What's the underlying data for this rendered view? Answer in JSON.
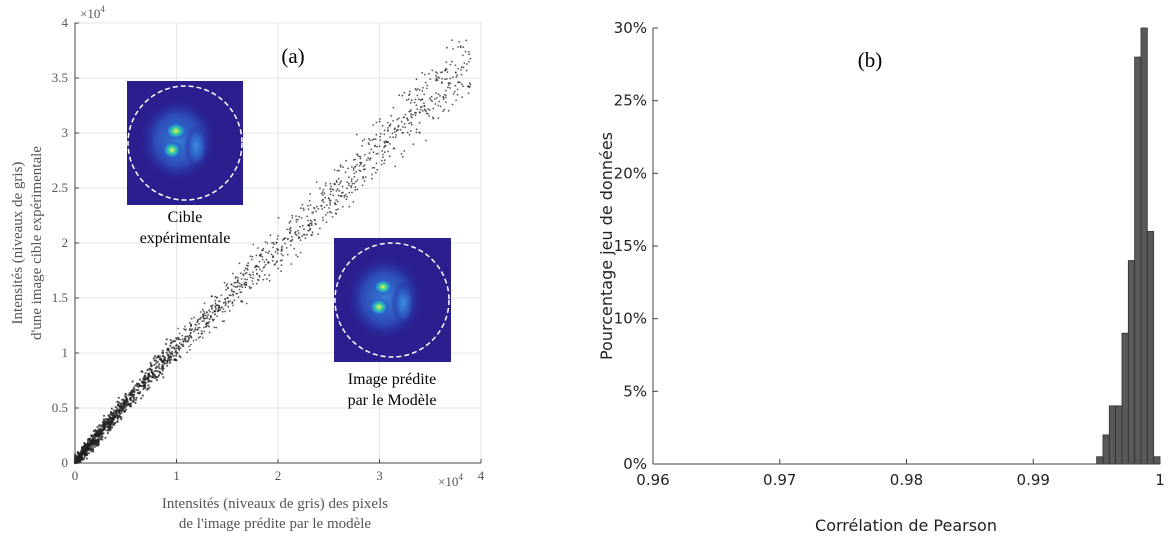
{
  "chart_data": [
    {
      "type": "scatter",
      "panel_label": "(a)",
      "xlabel_lines": [
        "Intensités (niveaux de gris) des pixels",
        "de l'image prédite par le modèle"
      ],
      "ylabel_lines": [
        "Intensités (niveaux de gris)",
        "d'une image cible expérimentale"
      ],
      "x_multiplier": "×10",
      "x_multiplier_exp": "4",
      "y_multiplier": "×10",
      "y_multiplier_exp": "4",
      "xlim": [
        0,
        4
      ],
      "ylim": [
        0,
        4
      ],
      "x_ticks": [
        0,
        1,
        2,
        3,
        4
      ],
      "x_tick_labels": [
        "0",
        "1",
        "2",
        "3",
        "4"
      ],
      "y_ticks": [
        0,
        0.5,
        1,
        1.5,
        2,
        2.5,
        3,
        3.5,
        4
      ],
      "y_tick_labels": [
        "0",
        "0.5",
        "1",
        "1.5",
        "2",
        "2.5",
        "3",
        "3.5",
        "4"
      ],
      "grid": true,
      "marker_color": "#222222",
      "trend": {
        "x": [
          0,
          0.5,
          1.0,
          1.5,
          2.0,
          2.5,
          3.0,
          3.5,
          3.9
        ],
        "y": [
          0,
          0.55,
          1.05,
          1.5,
          1.95,
          2.4,
          2.9,
          3.35,
          3.6
        ]
      },
      "insets": [
        {
          "caption_lines": [
            "Cible",
            "expérimentale"
          ]
        },
        {
          "caption_lines": [
            "Image prédite",
            "par le Modèle"
          ]
        }
      ]
    },
    {
      "type": "bar",
      "panel_label": "(b)",
      "xlabel": "Corrélation de Pearson",
      "ylabel": "Pourcentage jeu de données",
      "xlim": [
        0.96,
        1.0
      ],
      "ylim": [
        0,
        30
      ],
      "x_ticks": [
        0.96,
        0.97,
        0.98,
        0.99,
        1.0
      ],
      "x_tick_labels": [
        "0.96",
        "0.97",
        "0.98",
        "0.99",
        "1"
      ],
      "y_ticks": [
        0,
        5,
        10,
        15,
        20,
        25,
        30
      ],
      "y_tick_labels": [
        "0%",
        "5%",
        "10%",
        "15%",
        "20%",
        "25%",
        "30%"
      ],
      "bar_color": "#595959",
      "bin_edges": [
        0.995,
        0.9955,
        0.996,
        0.9965,
        0.997,
        0.9975,
        0.998,
        0.9985,
        0.999,
        0.9995,
        1.0
      ],
      "values": [
        0.5,
        2,
        4,
        4,
        9,
        14,
        28,
        30,
        16,
        0.5
      ]
    }
  ]
}
